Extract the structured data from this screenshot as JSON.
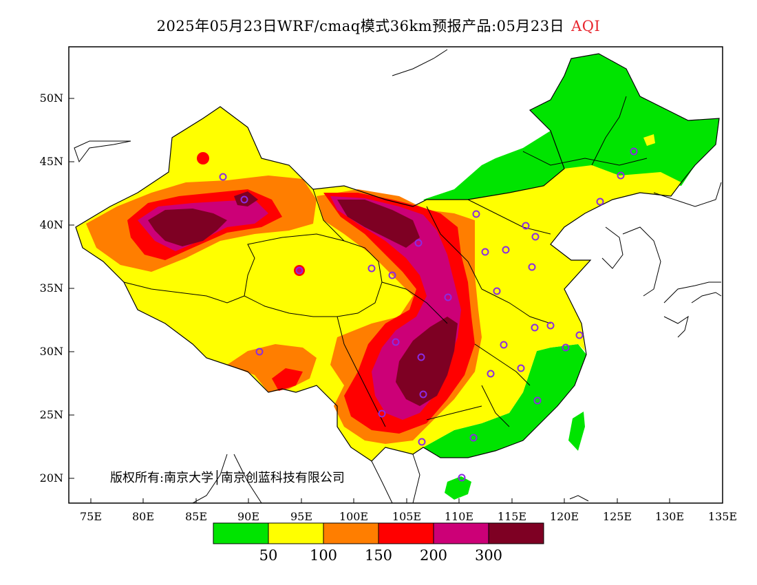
{
  "title": {
    "main": "2025年05月23日WRF/cmaq模式36km预报产品:05月23日",
    "variable": "AQI"
  },
  "copyright": "版权所有:南京大学│南京创蓝科技有限公司",
  "axes": {
    "x_ticks": [
      "75E",
      "80E",
      "85E",
      "90E",
      "95E",
      "100E",
      "105E",
      "110E",
      "115E",
      "120E",
      "125E",
      "130E",
      "135E"
    ],
    "y_ticks": [
      "50N",
      "45N",
      "40N",
      "35N",
      "30N",
      "25N",
      "20N"
    ]
  },
  "legend": {
    "colors": [
      "#00e400",
      "#ffff00",
      "#ff7e00",
      "#ff0000",
      "#cc0077",
      "#7e0023"
    ],
    "labels": [
      "50",
      "100",
      "150",
      "200",
      "300"
    ]
  },
  "colors": {
    "frame": "#000000",
    "station_marker": "#8a2be2",
    "title_variable": "#e8242c"
  }
}
